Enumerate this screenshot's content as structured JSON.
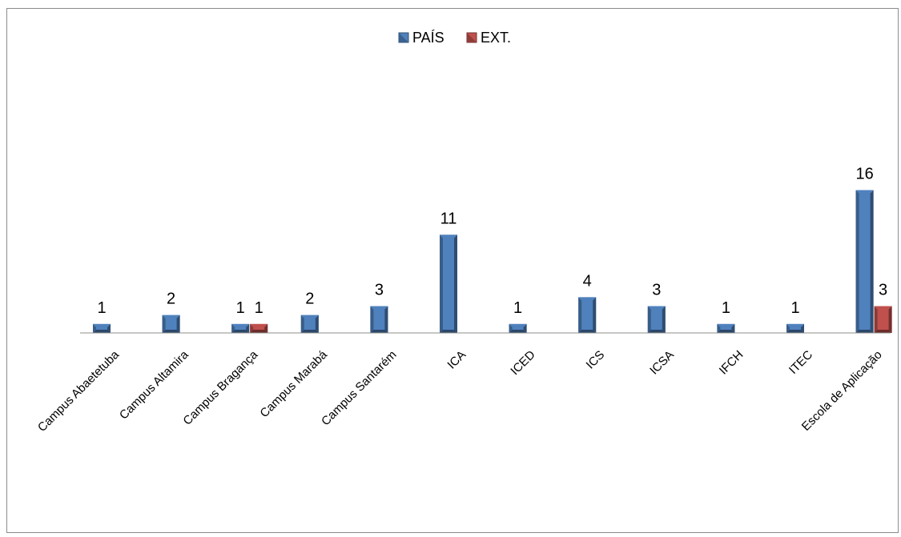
{
  "chart_data": {
    "type": "bar",
    "categories": [
      "Campus Abaetetuba",
      "Campus Altamira",
      "Campus Bragança",
      "Campus Marabá",
      "Campus Santarém",
      "ICA",
      "ICED",
      "ICS",
      "ICSA",
      "IFCH",
      "ITEC",
      "Escola de Aplicação"
    ],
    "series": [
      {
        "name": "PAÍS",
        "values": [
          1,
          2,
          1,
          2,
          3,
          11,
          1,
          4,
          3,
          1,
          1,
          16
        ],
        "color": "#4f81bd"
      },
      {
        "name": "EXT.",
        "values": [
          null,
          null,
          1,
          null,
          null,
          null,
          null,
          null,
          null,
          null,
          null,
          3
        ],
        "color": "#c0504d"
      }
    ],
    "legend_position": "top",
    "grid": false,
    "ylim": [
      0,
      32
    ],
    "data_labels": true
  }
}
